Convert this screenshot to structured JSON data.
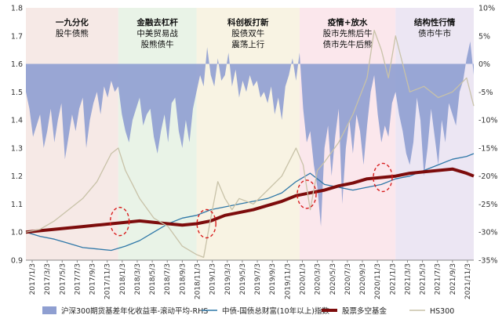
{
  "chart_data": {
    "type": "line",
    "x_ticks": [
      "2017/1/3",
      "2017/3/3",
      "2017/5/3",
      "2017/7/3",
      "2017/9/3",
      "2017/11/3",
      "2018/1/3",
      "2018/3/3",
      "2018/5/3",
      "2018/7/3",
      "2018/9/3",
      "2018/11/3",
      "2019/1/3",
      "2019/3/3",
      "2019/5/3",
      "2019/7/3",
      "2019/9/3",
      "2019/11/3",
      "2020/1/3",
      "2020/3/3",
      "2020/5/3",
      "2020/7/3",
      "2020/9/3",
      "2020/11/3",
      "2021/1/3",
      "2021/3/3",
      "2021/5/3",
      "2021/7/3",
      "2021/9/3",
      "2021/11/3"
    ],
    "y_left": {
      "min": 0.9,
      "max": 1.8,
      "ticks": [
        "0.9",
        "1.0",
        "1.1",
        "1.2",
        "1.3",
        "1.4",
        "1.5",
        "1.6",
        "1.7",
        "1.8"
      ]
    },
    "y_right": {
      "min": -35,
      "max": 10,
      "ticks": [
        "10%",
        "5%",
        "0%",
        "-5%",
        "-10%",
        "-15%",
        "-20%",
        "-25%",
        "-30%",
        "-35%"
      ]
    },
    "phases": [
      {
        "start": 0,
        "end": 13.0,
        "color": "#f6e9e6",
        "title": "一九分化",
        "lines": [
          "股牛债熊"
        ]
      },
      {
        "start": 13.0,
        "end": 24.0,
        "color": "#e9f3e7",
        "title": "金融去杠杆",
        "lines": [
          "中美贸易战",
          "股熊债牛"
        ]
      },
      {
        "start": 24.0,
        "end": 38.5,
        "color": "#f8f3e3",
        "title": "科创板打新",
        "lines": [
          "股债双牛",
          "震荡上行"
        ]
      },
      {
        "start": 38.5,
        "end": 52.0,
        "color": "#fbe7ec",
        "title": "疫情+放水",
        "lines": [
          "股市先熊后牛",
          "债市先牛后熊"
        ]
      },
      {
        "start": 52.0,
        "end": 63.0,
        "color": "#ece6f3",
        "title": "结构性行情",
        "lines": [
          "债市牛市"
        ]
      }
    ],
    "series": [
      {
        "name": "沪深300期货基差年化收益率-滚动平均-RHS",
        "axis": "right",
        "style": "area",
        "color": "#8f9fd1",
        "x": [
          0,
          0.5,
          1,
          1.5,
          2,
          2.5,
          3,
          3.5,
          4,
          4.5,
          5,
          5.5,
          6,
          6.5,
          7,
          7.5,
          8,
          8.5,
          9,
          9.5,
          10,
          10.5,
          11,
          11.5,
          12,
          12.5,
          13,
          13.5,
          14,
          14.5,
          15,
          15.5,
          16,
          16.5,
          17,
          17.5,
          18,
          18.5,
          19,
          19.5,
          20,
          20.5,
          21,
          21.5,
          22,
          22.5,
          23,
          23.5,
          24,
          24.5,
          25,
          25.5,
          26,
          26.5,
          27,
          27.5,
          28,
          28.5,
          29,
          29.5,
          30,
          30.5,
          31,
          31.5,
          32,
          32.5,
          33,
          33.5,
          34,
          34.5,
          35,
          35.5,
          36,
          36.5,
          37,
          37.5,
          38,
          38.5,
          39,
          39.5,
          40,
          40.5,
          41,
          41.5,
          42,
          42.5,
          43,
          43.5,
          44,
          44.5,
          45,
          45.5,
          46,
          46.5,
          47,
          47.5,
          48,
          48.5,
          49,
          49.5,
          50,
          50.5,
          51,
          51.5,
          52,
          52.5,
          53,
          53.5,
          54,
          54.5,
          55,
          55.5,
          56,
          56.5,
          57,
          57.5,
          58,
          58.5,
          59,
          59.5,
          60,
          60.5,
          61,
          61.5,
          62,
          62.5,
          63
        ],
        "values": [
          -5,
          -8,
          -13,
          -11,
          -9,
          -15,
          -12,
          -8,
          -14,
          -10,
          -7,
          -17,
          -13,
          -9,
          -12,
          -8,
          -6,
          -15,
          -10,
          -7,
          -5,
          -9,
          -4,
          -6,
          -3,
          -5,
          -4,
          -9,
          -12,
          -14,
          -10,
          -8,
          -6,
          -11,
          -9,
          -8,
          -13,
          -16,
          -12,
          -9,
          -14,
          -7,
          -6,
          -12,
          -15,
          -10,
          -14,
          -8,
          -5,
          -2,
          -4,
          3,
          -2,
          -4,
          1,
          -3,
          -2,
          2,
          -4,
          -1,
          -6,
          -3,
          -5,
          -2,
          -4,
          -3,
          -6,
          -5,
          -7,
          -4,
          -9,
          -6,
          -10,
          -4,
          -2,
          1,
          -3,
          2,
          -8,
          -14,
          -12,
          -18,
          -22,
          -29,
          -15,
          -11,
          -20,
          -13,
          -8,
          -25,
          -15,
          -10,
          -16,
          -9,
          -12,
          -18,
          -11,
          -5,
          -2,
          -9,
          -14,
          -11,
          -13,
          -7,
          -5,
          -9,
          -12,
          -16,
          -18,
          -14,
          -6,
          -10,
          -20,
          -15,
          -8,
          -13,
          -18,
          -10,
          -14,
          -7,
          -9,
          -11,
          -5,
          -3,
          1,
          4,
          -2
        ]
      },
      {
        "name": "中债-国债总财富(10年以上)指数",
        "axis": "left",
        "style": "line",
        "color": "#2f78a8",
        "x": [
          0,
          2,
          4,
          6,
          8,
          10,
          12,
          14,
          16,
          18,
          20,
          22,
          24,
          26,
          28,
          30,
          32,
          34,
          36,
          38,
          40,
          42,
          44,
          46,
          48,
          50,
          52,
          54,
          56,
          58,
          60,
          62,
          63
        ],
        "values": [
          1.0,
          0.985,
          0.975,
          0.96,
          0.945,
          0.94,
          0.935,
          0.95,
          0.97,
          1.0,
          1.03,
          1.05,
          1.06,
          1.08,
          1.09,
          1.1,
          1.11,
          1.12,
          1.14,
          1.18,
          1.21,
          1.17,
          1.16,
          1.15,
          1.16,
          1.17,
          1.19,
          1.2,
          1.22,
          1.24,
          1.26,
          1.27,
          1.28
        ]
      },
      {
        "name": "股票多空基金",
        "axis": "left",
        "style": "bold-line",
        "color": "#7d0c0c",
        "x": [
          0,
          2,
          4,
          6,
          8,
          10,
          12,
          14,
          16,
          18,
          20,
          22,
          24,
          26,
          28,
          30,
          32,
          34,
          36,
          38,
          40,
          42,
          44,
          46,
          48,
          50,
          52,
          54,
          56,
          58,
          60,
          62,
          63
        ],
        "values": [
          1.0,
          1.005,
          1.01,
          1.015,
          1.02,
          1.025,
          1.03,
          1.035,
          1.04,
          1.035,
          1.03,
          1.025,
          1.03,
          1.04,
          1.06,
          1.07,
          1.08,
          1.095,
          1.11,
          1.13,
          1.14,
          1.15,
          1.165,
          1.175,
          1.19,
          1.195,
          1.2,
          1.21,
          1.215,
          1.22,
          1.225,
          1.21,
          1.2
        ]
      },
      {
        "name": "HS300",
        "axis": "left",
        "style": "line",
        "color": "#c8c2a8",
        "x": [
          0,
          2,
          4,
          6,
          8,
          10,
          12,
          13,
          14,
          15,
          16,
          18,
          20,
          22,
          24,
          25,
          26,
          27,
          28,
          29,
          30,
          32,
          34,
          36,
          38,
          39,
          40,
          41,
          42,
          44,
          46,
          48,
          49,
          50,
          51,
          52,
          53,
          54,
          56,
          58,
          60,
          62,
          63
        ],
        "values": [
          1.0,
          1.01,
          1.04,
          1.08,
          1.12,
          1.18,
          1.28,
          1.3,
          1.22,
          1.17,
          1.12,
          1.05,
          1.02,
          0.95,
          0.92,
          0.91,
          1.05,
          1.18,
          1.12,
          1.08,
          1.12,
          1.1,
          1.15,
          1.2,
          1.3,
          1.24,
          1.08,
          1.22,
          1.25,
          1.32,
          1.42,
          1.55,
          1.72,
          1.65,
          1.55,
          1.7,
          1.6,
          1.5,
          1.52,
          1.48,
          1.5,
          1.55,
          1.45
        ]
      }
    ],
    "annotations": [
      {
        "type": "dashed-ellipse",
        "x": 13.2,
        "y": 1.038
      },
      {
        "type": "dashed-ellipse",
        "x": 25.4,
        "y": 1.03
      },
      {
        "type": "dashed-ellipse",
        "x": 39.5,
        "y": 1.135
      },
      {
        "type": "dashed-ellipse",
        "x": 50.2,
        "y": 1.195
      }
    ],
    "legend": [
      {
        "label": "沪深300期货基差年化收益率-滚动平均-RHS",
        "style": "area",
        "color": "#8f9fd1"
      },
      {
        "label": "中债-国债总财富(10年以上)指数",
        "style": "line",
        "color": "#2f78a8"
      },
      {
        "label": "股票多空基金",
        "style": "bold-line",
        "color": "#7d0c0c"
      },
      {
        "label": "HS300",
        "style": "line",
        "color": "#c8c2a8"
      }
    ],
    "legend_position": "bottom"
  }
}
